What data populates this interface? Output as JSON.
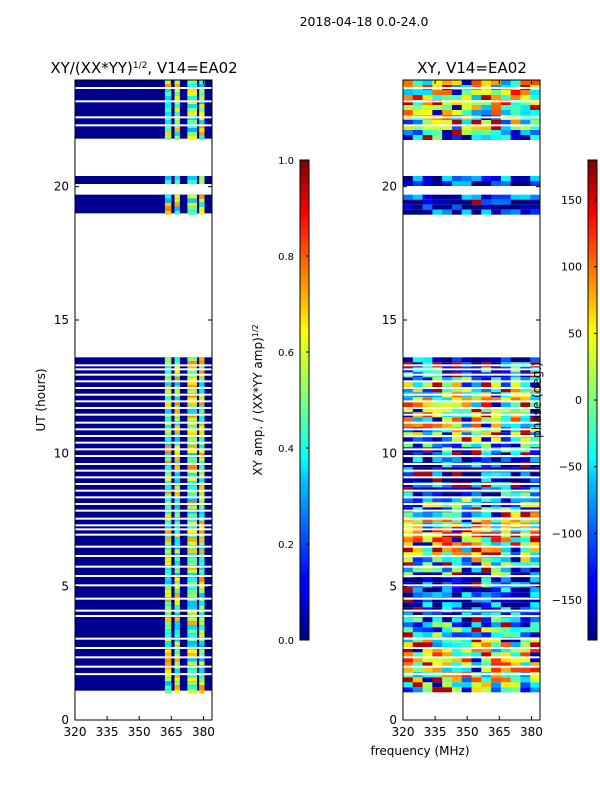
{
  "chart_data": {
    "suptitle": "2018-04-18 0.0-24.0",
    "xlabel": "frequency (MHz)",
    "panels": [
      {
        "type": "heatmap",
        "title_main": "XY/(XX*YY)",
        "title_sup": "1/2",
        "title_tail": ", V14=EA02",
        "ylabel": "UT (hours)",
        "xlim": [
          320,
          384
        ],
        "ylim": [
          0,
          24
        ],
        "xticks": [
          "320",
          "335",
          "350",
          "365",
          "380"
        ],
        "xtick_values": [
          320,
          335,
          350,
          365,
          380
        ],
        "yticks": [
          "0",
          "5",
          "10",
          "15",
          "20"
        ],
        "ytick_values": [
          0,
          5,
          10,
          15,
          20
        ],
        "colorbar": {
          "label_main": "XY amp. / (XX*YY amp)",
          "label_sup": "1/2",
          "range": [
            0.0,
            1.0
          ],
          "ticks": [
            "0.0",
            "0.2",
            "0.4",
            "0.6",
            "0.8",
            "1.0"
          ],
          "tick_values": [
            0.0,
            0.2,
            0.4,
            0.6,
            0.8,
            1.0
          ]
        }
      },
      {
        "type": "heatmap",
        "title_main": "XY, V14=EA02",
        "ylabel": "",
        "xlim": [
          320,
          384
        ],
        "ylim": [
          0,
          24
        ],
        "xticks": [
          "320",
          "335",
          "350",
          "365",
          "380"
        ],
        "xtick_values": [
          320,
          335,
          350,
          365,
          380
        ],
        "yticks": [
          "0",
          "5",
          "10",
          "15",
          "20"
        ],
        "ytick_values": [
          0,
          5,
          10,
          15,
          20
        ],
        "colorbar": {
          "label_main": "phase (deg.)",
          "range": [
            -180,
            180
          ],
          "ticks": [
            "−150",
            "−100",
            "−50",
            "0",
            "50",
            "100",
            "150"
          ],
          "tick_values": [
            -150,
            -100,
            -50,
            0,
            50,
            100,
            150
          ]
        }
      }
    ],
    "data_bands_ut": [
      [
        1.1,
        13.6
      ],
      [
        19.0,
        19.7
      ],
      [
        20.1,
        20.4
      ],
      [
        21.8,
        24.0
      ]
    ],
    "gap_lines_ut": [
      1.72,
      2.0,
      2.35,
      2.7,
      3.05,
      3.9,
      4.1,
      4.55,
      5.05,
      5.4,
      5.75,
      6.15,
      6.5,
      6.95,
      7.15,
      7.3,
      7.55,
      7.85,
      8.1,
      8.35,
      8.6,
      8.85,
      9.1,
      9.35,
      9.6,
      9.9,
      10.15,
      10.4,
      10.65,
      10.9,
      11.15,
      11.45,
      11.7,
      11.95,
      12.2,
      12.45,
      12.7,
      12.95,
      13.15,
      13.3,
      23.7,
      23.2,
      22.6,
      22.3
    ],
    "amp_bright_bands_mhz": [
      [
        362,
        365
      ],
      [
        366.5,
        369
      ],
      [
        372.5,
        377
      ],
      [
        378,
        380.5
      ]
    ]
  }
}
